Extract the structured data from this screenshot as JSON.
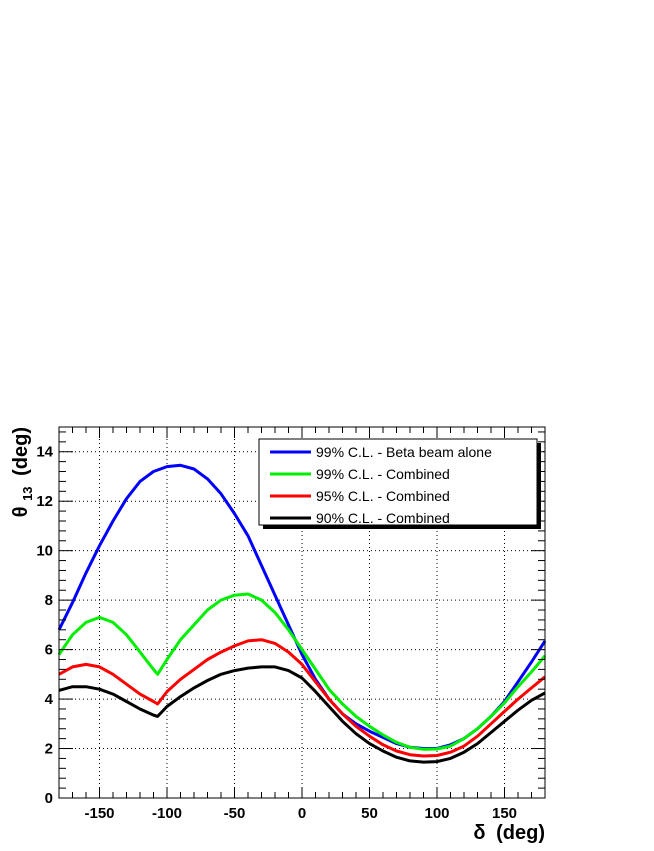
{
  "chart_data": {
    "type": "line",
    "xlabel": {
      "symbol": "δ",
      "text": "(deg)"
    },
    "ylabel": {
      "symbol": "θ",
      "sub": "13",
      "text": "(deg)"
    },
    "xlim": [
      -180,
      180
    ],
    "ylim": [
      0,
      15
    ],
    "x_ticks": [
      -150,
      -100,
      -50,
      0,
      50,
      100,
      150
    ],
    "x_tick_labels": [
      "-150",
      "-100",
      "-50",
      "0",
      "50",
      "100",
      "150"
    ],
    "y_ticks": [
      0,
      2,
      4,
      6,
      8,
      10,
      12,
      14
    ],
    "y_tick_labels": [
      "0",
      "2",
      "4",
      "6",
      "8",
      "10",
      "12",
      "14"
    ],
    "grid": true,
    "legend_position": "top-right",
    "series": [
      {
        "name": "99% C.L. - Beta beam alone",
        "color": "#0000ff",
        "points": [
          [
            -180,
            6.8
          ],
          [
            -170,
            7.9
          ],
          [
            -160,
            9.1
          ],
          [
            -150,
            10.2
          ],
          [
            -140,
            11.2
          ],
          [
            -130,
            12.1
          ],
          [
            -120,
            12.8
          ],
          [
            -110,
            13.2
          ],
          [
            -100,
            13.4
          ],
          [
            -90,
            13.45
          ],
          [
            -80,
            13.3
          ],
          [
            -70,
            12.9
          ],
          [
            -60,
            12.3
          ],
          [
            -50,
            11.5
          ],
          [
            -40,
            10.6
          ],
          [
            -30,
            9.4
          ],
          [
            -20,
            8.2
          ],
          [
            -10,
            7.0
          ],
          [
            0,
            5.8
          ],
          [
            10,
            4.8
          ],
          [
            20,
            4.0
          ],
          [
            30,
            3.4
          ],
          [
            40,
            3.0
          ],
          [
            50,
            2.7
          ],
          [
            60,
            2.45
          ],
          [
            70,
            2.2
          ],
          [
            80,
            2.05
          ],
          [
            90,
            2.0
          ],
          [
            100,
            2.0
          ],
          [
            110,
            2.15
          ],
          [
            120,
            2.4
          ],
          [
            130,
            2.8
          ],
          [
            140,
            3.3
          ],
          [
            150,
            3.9
          ],
          [
            160,
            4.7
          ],
          [
            170,
            5.5
          ],
          [
            180,
            6.35
          ]
        ]
      },
      {
        "name": "99% C.L. - Combined",
        "color": "#00ee00",
        "points": [
          [
            -180,
            5.8
          ],
          [
            -170,
            6.6
          ],
          [
            -160,
            7.1
          ],
          [
            -150,
            7.3
          ],
          [
            -140,
            7.1
          ],
          [
            -130,
            6.6
          ],
          [
            -120,
            5.9
          ],
          [
            -110,
            5.2
          ],
          [
            -107,
            5.0
          ],
          [
            -100,
            5.6
          ],
          [
            -90,
            6.4
          ],
          [
            -80,
            7.0
          ],
          [
            -70,
            7.6
          ],
          [
            -60,
            8.0
          ],
          [
            -50,
            8.2
          ],
          [
            -40,
            8.25
          ],
          [
            -30,
            8.0
          ],
          [
            -20,
            7.5
          ],
          [
            -10,
            6.8
          ],
          [
            0,
            6.0
          ],
          [
            10,
            5.2
          ],
          [
            20,
            4.4
          ],
          [
            30,
            3.8
          ],
          [
            40,
            3.3
          ],
          [
            50,
            2.9
          ],
          [
            60,
            2.55
          ],
          [
            70,
            2.25
          ],
          [
            80,
            2.05
          ],
          [
            90,
            1.97
          ],
          [
            100,
            1.98
          ],
          [
            110,
            2.1
          ],
          [
            120,
            2.4
          ],
          [
            130,
            2.8
          ],
          [
            140,
            3.3
          ],
          [
            150,
            3.85
          ],
          [
            160,
            4.5
          ],
          [
            170,
            5.1
          ],
          [
            180,
            5.75
          ]
        ]
      },
      {
        "name": "95% C.L. - Combined",
        "color": "#ff0000",
        "points": [
          [
            -180,
            5.0
          ],
          [
            -170,
            5.3
          ],
          [
            -160,
            5.4
          ],
          [
            -150,
            5.3
          ],
          [
            -140,
            5.0
          ],
          [
            -130,
            4.6
          ],
          [
            -120,
            4.2
          ],
          [
            -110,
            3.9
          ],
          [
            -107,
            3.8
          ],
          [
            -100,
            4.3
          ],
          [
            -90,
            4.8
          ],
          [
            -80,
            5.2
          ],
          [
            -70,
            5.6
          ],
          [
            -60,
            5.9
          ],
          [
            -50,
            6.15
          ],
          [
            -40,
            6.35
          ],
          [
            -30,
            6.4
          ],
          [
            -20,
            6.25
          ],
          [
            -10,
            5.9
          ],
          [
            0,
            5.4
          ],
          [
            10,
            4.7
          ],
          [
            20,
            4.0
          ],
          [
            30,
            3.4
          ],
          [
            40,
            2.9
          ],
          [
            50,
            2.5
          ],
          [
            60,
            2.15
          ],
          [
            70,
            1.9
          ],
          [
            80,
            1.75
          ],
          [
            90,
            1.7
          ],
          [
            100,
            1.72
          ],
          [
            110,
            1.85
          ],
          [
            120,
            2.1
          ],
          [
            130,
            2.5
          ],
          [
            140,
            3.0
          ],
          [
            150,
            3.5
          ],
          [
            160,
            4.0
          ],
          [
            170,
            4.45
          ],
          [
            180,
            4.9
          ]
        ]
      },
      {
        "name": "90% C.L. - Combined",
        "color": "#000000",
        "points": [
          [
            -180,
            4.35
          ],
          [
            -170,
            4.5
          ],
          [
            -160,
            4.5
          ],
          [
            -150,
            4.4
          ],
          [
            -140,
            4.2
          ],
          [
            -130,
            3.9
          ],
          [
            -120,
            3.6
          ],
          [
            -110,
            3.35
          ],
          [
            -107,
            3.3
          ],
          [
            -100,
            3.7
          ],
          [
            -90,
            4.1
          ],
          [
            -80,
            4.45
          ],
          [
            -70,
            4.75
          ],
          [
            -60,
            5.0
          ],
          [
            -50,
            5.15
          ],
          [
            -40,
            5.25
          ],
          [
            -30,
            5.3
          ],
          [
            -20,
            5.3
          ],
          [
            -10,
            5.15
          ],
          [
            0,
            4.85
          ],
          [
            10,
            4.3
          ],
          [
            20,
            3.7
          ],
          [
            30,
            3.1
          ],
          [
            40,
            2.6
          ],
          [
            50,
            2.2
          ],
          [
            60,
            1.9
          ],
          [
            70,
            1.65
          ],
          [
            80,
            1.5
          ],
          [
            90,
            1.45
          ],
          [
            100,
            1.47
          ],
          [
            110,
            1.6
          ],
          [
            120,
            1.85
          ],
          [
            130,
            2.2
          ],
          [
            140,
            2.65
          ],
          [
            150,
            3.1
          ],
          [
            160,
            3.55
          ],
          [
            170,
            3.95
          ],
          [
            180,
            4.25
          ]
        ]
      }
    ]
  }
}
